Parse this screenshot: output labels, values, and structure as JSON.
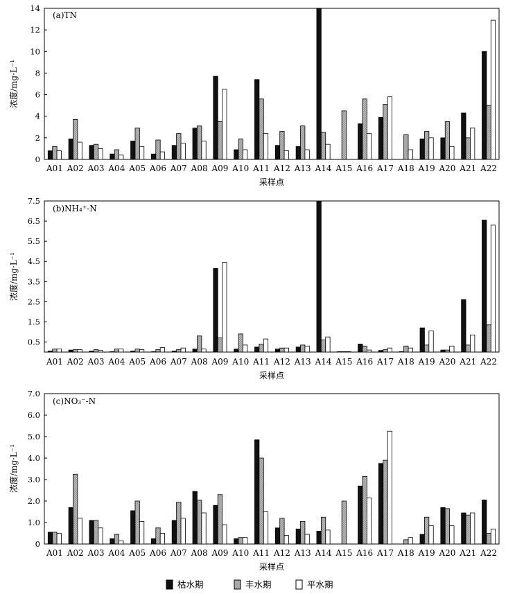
{
  "figure": {
    "legend_position": "bottom",
    "fills": {
      "dry": "#111111",
      "wet": "#b8b8b8",
      "normal": "#ffffff"
    }
  },
  "chart_data": [
    {
      "type": "bar",
      "title": "(a)TN",
      "xlabel": "采样点",
      "ylabel": "浓度/mg·L⁻¹",
      "ylim": [
        0,
        14
      ],
      "yticks": [
        "0",
        "2",
        "4",
        "6",
        "8",
        "10",
        "12",
        "14"
      ],
      "categories": [
        "A01",
        "A02",
        "A03",
        "A04",
        "A05",
        "A06",
        "A07",
        "A08",
        "A09",
        "A10",
        "A11",
        "A12",
        "A13",
        "A14",
        "A15",
        "A16",
        "A17",
        "A18",
        "A19",
        "A20",
        "A21",
        "A22"
      ],
      "series": [
        {
          "name": "枯水期",
          "values": [
            0.8,
            1.9,
            1.3,
            0.5,
            1.7,
            0.5,
            1.3,
            2.9,
            7.7,
            0.9,
            7.4,
            1.3,
            1.2,
            14.0,
            0,
            3.3,
            3.9,
            0,
            1.9,
            2.0,
            4.3,
            10.0
          ]
        },
        {
          "name": "丰水期",
          "values": [
            1.2,
            3.7,
            1.4,
            0.9,
            2.9,
            1.8,
            2.4,
            3.1,
            3.5,
            1.9,
            5.6,
            2.6,
            3.1,
            2.5,
            4.5,
            5.6,
            5.1,
            2.3,
            2.6,
            3.5,
            2.0,
            5.0
          ]
        },
        {
          "name": "平水期",
          "values": [
            0.8,
            1.6,
            1.0,
            0.4,
            1.2,
            0.7,
            1.5,
            1.7,
            6.5,
            0.9,
            2.4,
            0.8,
            0.9,
            1.4,
            0,
            2.4,
            5.8,
            0.9,
            2.0,
            1.2,
            2.9,
            12.9
          ]
        }
      ]
    },
    {
      "type": "bar",
      "title": "(b)NH₄⁺-N",
      "xlabel": "采样点",
      "ylabel": "浓度/mg·L⁻¹",
      "ylim": [
        0,
        7.5
      ],
      "yticks": [
        "0.5",
        "1.5",
        "2.5",
        "3.5",
        "4.5",
        "5.5",
        "6.5",
        "7.5"
      ],
      "categories": [
        "A01",
        "A02",
        "A03",
        "A04",
        "A05",
        "A06",
        "A07",
        "A08",
        "A09",
        "A10",
        "A11",
        "A12",
        "A13",
        "A14",
        "A15",
        "A16",
        "A17",
        "A18",
        "A19",
        "A20",
        "A21",
        "A22"
      ],
      "series": [
        {
          "name": "枯水期",
          "values": [
            0.05,
            0.1,
            0.05,
            0.02,
            0.05,
            0.02,
            0.05,
            0.15,
            4.15,
            0.15,
            0.25,
            0.15,
            0.25,
            7.5,
            0.02,
            0.4,
            0.08,
            0.02,
            1.2,
            0.1,
            2.6,
            6.55
          ]
        },
        {
          "name": "丰水期",
          "values": [
            0.15,
            0.12,
            0.12,
            0.15,
            0.15,
            0.12,
            0.12,
            0.8,
            0.7,
            0.9,
            0.4,
            0.2,
            0.35,
            0.6,
            0.02,
            0.3,
            0.12,
            0.3,
            0.35,
            0.1,
            0.35,
            1.35
          ]
        },
        {
          "name": "平水期",
          "values": [
            0.15,
            0.12,
            0.08,
            0.15,
            0.12,
            0.22,
            0.2,
            0.15,
            4.45,
            0.35,
            0.65,
            0.2,
            0.3,
            0.75,
            0.02,
            0.1,
            0.2,
            0.2,
            1.05,
            0.3,
            0.85,
            6.3
          ]
        }
      ]
    },
    {
      "type": "bar",
      "title": "(c)NO₃⁻-N",
      "xlabel": "采样点",
      "ylabel": "浓度/mg·L⁻¹",
      "ylim": [
        0,
        7
      ],
      "yticks": [
        "0",
        "1.0",
        "2.0",
        "3.0",
        "4.0",
        "5.0",
        "6.0",
        "7.0"
      ],
      "categories": [
        "A01",
        "A02",
        "A03",
        "A04",
        "A05",
        "A06",
        "A07",
        "A08",
        "A09",
        "A10",
        "A11",
        "A12",
        "A13",
        "A14",
        "A15",
        "A16",
        "A17",
        "A18",
        "A19",
        "A20",
        "A21",
        "A22"
      ],
      "series": [
        {
          "name": "枯水期",
          "values": [
            0.55,
            1.7,
            1.1,
            0.25,
            1.55,
            0.25,
            1.1,
            2.45,
            1.8,
            0.25,
            4.85,
            0.75,
            0.7,
            0.6,
            0,
            2.7,
            3.75,
            0,
            0.45,
            1.7,
            1.45,
            2.05
          ]
        },
        {
          "name": "丰水期",
          "values": [
            0.55,
            3.25,
            1.1,
            0.45,
            2.0,
            0.75,
            1.95,
            2.05,
            2.3,
            0.3,
            4.0,
            1.2,
            1.05,
            1.25,
            2.0,
            3.15,
            3.9,
            0.2,
            1.25,
            1.65,
            1.35,
            0.5
          ]
        },
        {
          "name": "平水期",
          "values": [
            0.5,
            1.2,
            0.75,
            0.15,
            1.05,
            0.5,
            1.2,
            1.45,
            0.9,
            0.3,
            1.5,
            0.4,
            0.45,
            0.65,
            0,
            2.15,
            5.25,
            0.3,
            0.85,
            0.85,
            1.45,
            0.7
          ]
        }
      ]
    }
  ],
  "legend": {
    "items": [
      {
        "label": "枯水期",
        "series": "dry"
      },
      {
        "label": "丰水期",
        "series": "wet"
      },
      {
        "label": "平水期",
        "series": "normal"
      }
    ]
  }
}
